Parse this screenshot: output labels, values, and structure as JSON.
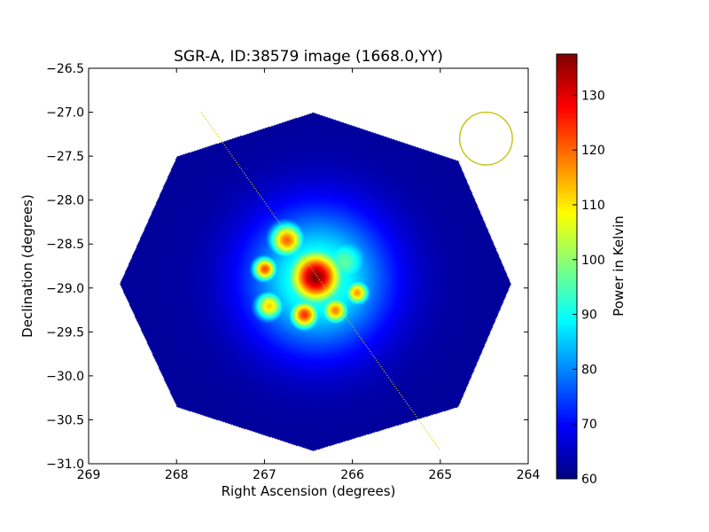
{
  "chart_data": {
    "type": "heatmap",
    "title": "SGR-A, ID:38579 image (1668.0,YY)",
    "xlabel": "Right Ascension (degrees)",
    "ylabel": "Declination (degrees)",
    "xlim": [
      269,
      264
    ],
    "ylim": [
      -31.0,
      -26.5
    ],
    "x_ticks": [
      "269",
      "268",
      "267",
      "266",
      "265",
      "264"
    ],
    "y_ticks": [
      "−26.5",
      "−27.0",
      "−27.5",
      "−28.0",
      "−28.5",
      "−29.0",
      "−29.5",
      "−30.0",
      "−30.5",
      "−31.0"
    ],
    "colorbar": {
      "label": "Power in Kelvin",
      "range": [
        60,
        137.5
      ],
      "ticks": [
        "60",
        "70",
        "80",
        "90",
        "100",
        "110",
        "120",
        "130"
      ],
      "colormap": "jet"
    },
    "field_of_view": {
      "shape": "octagon",
      "vertices_deg": [
        [
          266.45,
          -27.0
        ],
        [
          264.8,
          -27.55
        ],
        [
          264.2,
          -28.95
        ],
        [
          264.8,
          -30.35
        ],
        [
          266.45,
          -30.85
        ],
        [
          268.0,
          -30.35
        ],
        [
          268.65,
          -28.95
        ],
        [
          268.0,
          -27.5
        ]
      ],
      "base_value": 62
    },
    "emission_peaks": [
      {
        "ra": 266.42,
        "dec": -28.87,
        "value": 137,
        "sigma_deg": 0.22
      },
      {
        "ra": 266.75,
        "dec": -28.45,
        "value": 120,
        "sigma_deg": 0.14
      },
      {
        "ra": 267.0,
        "dec": -28.78,
        "value": 122,
        "sigma_deg": 0.1
      },
      {
        "ra": 266.55,
        "dec": -29.3,
        "value": 124,
        "sigma_deg": 0.12
      },
      {
        "ra": 266.2,
        "dec": -29.25,
        "value": 118,
        "sigma_deg": 0.11
      },
      {
        "ra": 265.95,
        "dec": -29.05,
        "value": 116,
        "sigma_deg": 0.1
      },
      {
        "ra": 266.95,
        "dec": -29.2,
        "value": 112,
        "sigma_deg": 0.12
      },
      {
        "ra": 266.1,
        "dec": -28.7,
        "value": 96,
        "sigma_deg": 0.22
      },
      {
        "ra": 266.4,
        "dec": -28.9,
        "value": 95,
        "sigma_deg": 0.55
      }
    ],
    "galactic_plane_line": {
      "start": [
        267.72,
        -27.0
      ],
      "end": [
        265.0,
        -30.85
      ],
      "color": "#cccc00"
    },
    "beam_circle": {
      "center": [
        264.48,
        -27.3
      ],
      "radius_deg": 0.3,
      "color": "#bfbf00"
    }
  }
}
